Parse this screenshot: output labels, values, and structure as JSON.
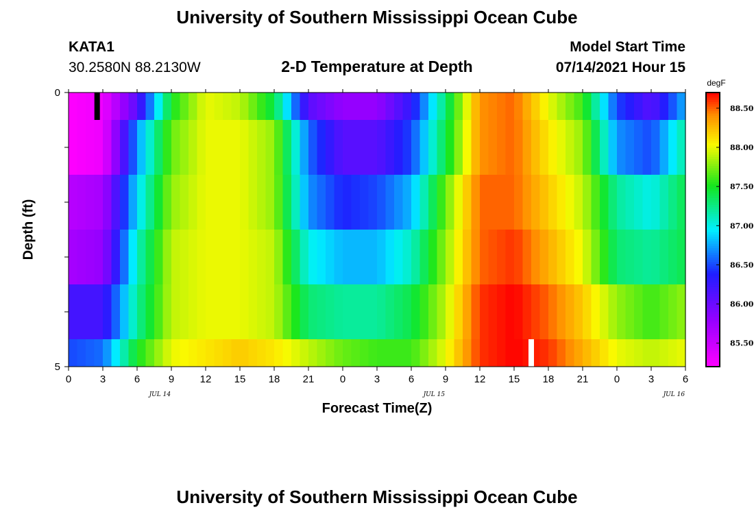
{
  "header": {
    "title_top": "University of Southern Mississippi Ocean Cube",
    "title_bottom": "University of Southern Mississippi Ocean Cube",
    "station_id": "KATA1",
    "station_coords": "30.2580N  88.2130W",
    "plot_title": "2-D Temperature at Depth",
    "model_start_label": "Model Start Time",
    "model_start_value": "07/14/2021 Hour 15"
  },
  "chart_data": {
    "type": "heatmap",
    "title": "2-D Temperature at Depth",
    "xlabel": "Forecast Time(Z)",
    "ylabel": "Depth (ft)",
    "x_tick_labels": [
      "0",
      "3",
      "6",
      "9",
      "12",
      "15",
      "18",
      "21",
      "0",
      "3",
      "6",
      "9",
      "12",
      "15",
      "18",
      "21",
      "0",
      "3",
      "6"
    ],
    "date_labels": [
      "JUL 14",
      "JUL 15",
      "JUL 16"
    ],
    "y_tick_labels": [
      "0",
      "5"
    ],
    "y_range": [
      0,
      5
    ],
    "colorbar": {
      "unit": "degF",
      "min": 85.2,
      "max": 88.7,
      "tick_values": [
        85.5,
        86.0,
        86.5,
        87.0,
        87.5,
        88.0,
        88.5
      ],
      "tick_labels": [
        "85.500",
        "86.000",
        "86.500",
        "87.000",
        "87.500",
        "88.000",
        "88.500"
      ]
    },
    "x_hours": [
      0,
      3,
      6,
      9,
      12,
      15,
      18,
      21,
      24,
      27,
      30,
      33,
      36,
      39,
      42,
      45,
      48,
      51,
      54
    ],
    "depth_layers": [
      0.25,
      1.25,
      2.25,
      3.25,
      4.25,
      4.75
    ],
    "series": [
      {
        "values": [
          85.2,
          85.3,
          86.1,
          87.5,
          88.0,
          87.9,
          87.4,
          86.1,
          85.8,
          85.8,
          86.3,
          87.3,
          88.4,
          88.5,
          88.0,
          87.6,
          86.5,
          86.1,
          86.8
        ]
      },
      {
        "values": [
          85.2,
          85.3,
          86.7,
          87.7,
          88.0,
          88.0,
          87.8,
          86.6,
          86.1,
          86.1,
          86.5,
          87.4,
          88.4,
          88.5,
          88.1,
          87.8,
          86.7,
          86.5,
          87.2
        ]
      },
      {
        "values": [
          85.6,
          85.7,
          86.9,
          87.8,
          88.0,
          88.0,
          87.8,
          86.7,
          86.4,
          86.5,
          86.8,
          87.7,
          88.5,
          88.5,
          88.2,
          87.9,
          87.2,
          87.0,
          87.4
        ]
      },
      {
        "values": [
          85.7,
          85.8,
          87.1,
          87.9,
          88.0,
          88.0,
          87.9,
          87.0,
          86.8,
          86.8,
          87.1,
          87.8,
          88.5,
          88.6,
          88.3,
          88.0,
          87.3,
          87.2,
          87.4
        ]
      },
      {
        "values": [
          86.2,
          86.2,
          87.2,
          87.9,
          88.0,
          88.0,
          87.9,
          87.3,
          87.2,
          87.2,
          87.4,
          87.9,
          88.6,
          88.7,
          88.5,
          88.2,
          87.8,
          87.6,
          87.8
        ]
      },
      {
        "values": [
          86.5,
          86.6,
          87.5,
          88.0,
          88.1,
          88.2,
          88.1,
          87.9,
          87.7,
          87.6,
          87.6,
          88.0,
          88.6,
          88.7,
          88.6,
          88.3,
          88.0,
          87.9,
          88.0
        ]
      }
    ],
    "markers": [
      {
        "hour": 2.5,
        "depth_from": 0,
        "depth_to": 0.5,
        "color": "#000000"
      },
      {
        "hour": 40.5,
        "depth_from": 4.5,
        "depth_to": 5,
        "color": "#ffffff"
      }
    ]
  }
}
